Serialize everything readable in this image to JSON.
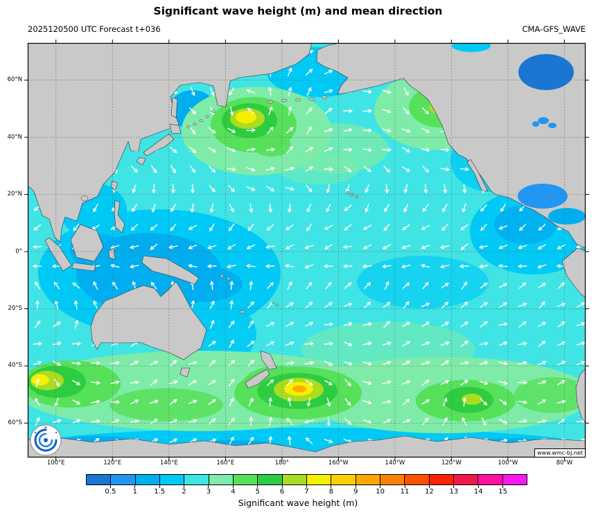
{
  "header": {
    "title": "Significant wave height (m) and mean direction",
    "run_label": "2025120500 UTC Forecast t+036",
    "model_label": "CMA-GFS_WAVE"
  },
  "axes": {
    "lat_labels": [
      "60°N",
      "40°N",
      "20°N",
      "0°",
      "20°S",
      "40°S",
      "60°S"
    ],
    "lon_labels": [
      "100°E",
      "120°E",
      "140°E",
      "160°E",
      "180°",
      "160°W",
      "140°W",
      "120°W",
      "100°W",
      "80°W"
    ]
  },
  "colorbar": {
    "label": "Significant wave height (m)",
    "ticks": [
      "0.5",
      "1",
      "1.5",
      "2",
      "3",
      "4",
      "5",
      "6",
      "7",
      "8",
      "9",
      "10",
      "11",
      "12",
      "13",
      "14",
      "15"
    ],
    "colors": [
      "#1976D2",
      "#2196F3",
      "#00AEEF",
      "#00C9F5",
      "#40E4E4",
      "#7EECA8",
      "#57E05A",
      "#2ECC40",
      "#AADC22",
      "#F5F000",
      "#FFD000",
      "#FFA800",
      "#FF8000",
      "#FF5000",
      "#FF2000",
      "#F01848",
      "#FF10A0",
      "#F818F0"
    ]
  },
  "watermark": "www.wmc-bj.net",
  "chart_data": {
    "type": "heatmap",
    "title": "Significant wave height (m) and mean direction",
    "model": "CMA-GFS_WAVE",
    "init_time": "2025120500 UTC",
    "lead_time": "t+036",
    "units": "m",
    "region": "Pacific Ocean, approx 90°E-73°W, 73°S-73°N, equirectangular",
    "lat_ticks": [
      "60°N",
      "40°N",
      "20°N",
      "0°",
      "20°S",
      "40°S",
      "60°S"
    ],
    "lon_ticks": [
      "100°E",
      "120°E",
      "140°E",
      "160°E",
      "180°",
      "160°W",
      "140°W",
      "120°W",
      "100°W",
      "80°W"
    ],
    "colorbar_values": [
      0.5,
      1,
      1.5,
      2,
      3,
      4,
      5,
      6,
      7,
      8,
      9,
      10,
      11,
      12,
      13,
      14,
      15
    ],
    "colorbar_colors": [
      "#1976D2",
      "#2196F3",
      "#00AEEF",
      "#00C9F5",
      "#40E4E4",
      "#7EECA8",
      "#57E05A",
      "#2ECC40",
      "#AADC22",
      "#F5F000",
      "#FFD000",
      "#FFA800",
      "#FF8000",
      "#FF5000",
      "#FF2000",
      "#F01848",
      "#FF10A0",
      "#F818F0"
    ],
    "background_ocean_hs_m": "2-3",
    "land_color": "#c9c9c9",
    "arrow_color": "#ffffff",
    "arrows_meaning": "mean wave direction (white vectors on regular grid)",
    "grid": "dotted graticule every 20 degrees",
    "features": [
      {
        "name": "Northwest Pacific storm swell",
        "approx_lon": "168°E",
        "approx_lat": "46°N",
        "peak_hs_m": 7
      },
      {
        "name": "Northeast Pacific swell",
        "approx_lon": "125°W",
        "approx_lat": "50°N",
        "peak_hs_m": 6
      },
      {
        "name": "Southern Ocean storm",
        "approx_lon": "175°W",
        "approx_lat": "48°S",
        "peak_hs_m": 9
      },
      {
        "name": "South Indian Ocean storm (west edge)",
        "approx_lon": "95°E",
        "approx_lat": "45°S",
        "peak_hs_m": 7
      },
      {
        "name": "Southeast Pacific swell",
        "approx_lon": "115°W",
        "approx_lat": "52°S",
        "peak_hs_m": 6
      },
      {
        "name": "Equatorial west Pacific low seas",
        "approx_lon": "140°E",
        "approx_lat": "0°",
        "min_hs_m": 1
      }
    ]
  }
}
